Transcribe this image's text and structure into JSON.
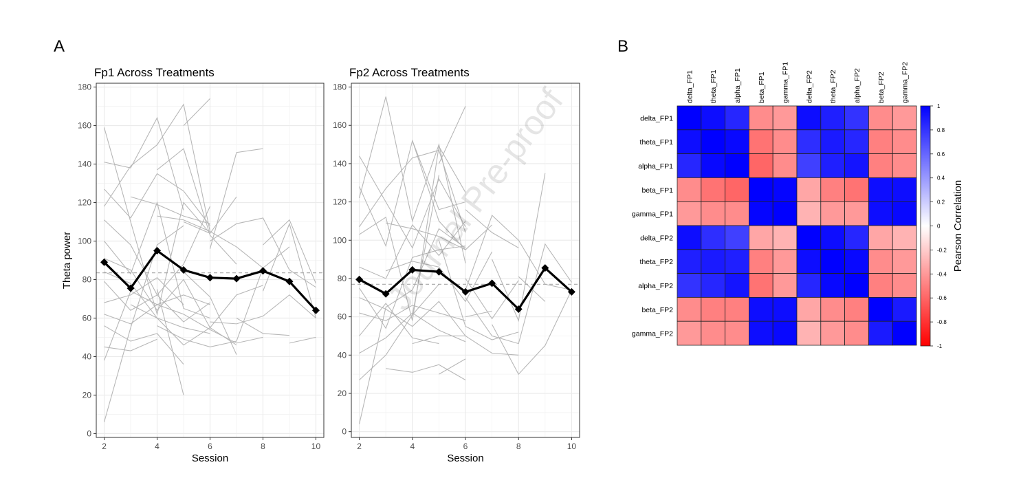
{
  "panel_labels": [
    "A",
    "B"
  ],
  "watermark": "Journal Pre-proof",
  "colors": {
    "individual_line": "#b3b3b3",
    "mean_line": "#000000",
    "reference_line": "#a6a6a6",
    "grid": "#ebebeb",
    "corr_negative": "#ff0000",
    "corr_zero": "#ffffff",
    "corr_positive": "#0000ff"
  },
  "chart_data": [
    {
      "type": "line",
      "title": "Fp1 Across Treatments",
      "xlabel": "Session",
      "ylabel": "Theta power",
      "xlim": [
        1.7,
        10.3
      ],
      "ylim": [
        -2,
        182
      ],
      "xticks": [
        2,
        4,
        6,
        8,
        10
      ],
      "yticks": [
        0,
        20,
        40,
        60,
        80,
        100,
        120,
        140,
        160,
        180
      ],
      "grid": true,
      "reference_y": 83.5,
      "mean_series": {
        "x": [
          2,
          3,
          4,
          5,
          6,
          7,
          8,
          9,
          10
        ],
        "y": [
          89,
          75.5,
          95,
          85,
          81,
          80.5,
          84.5,
          79,
          64
        ]
      },
      "individual_series": [
        {
          "x": [
            2,
            3,
            4,
            5,
            6
          ],
          "y": [
            159,
            110,
            62,
            120,
            104
          ]
        },
        {
          "x": [
            2,
            3,
            4,
            5
          ],
          "y": [
            141,
            138,
            164,
            116
          ]
        },
        {
          "x": [
            2,
            3,
            4,
            5,
            6
          ],
          "y": [
            127,
            112,
            135,
            126,
            108
          ]
        },
        {
          "x": [
            2,
            3,
            4,
            5,
            6
          ],
          "y": [
            118,
            139,
            150,
            171,
            105
          ]
        },
        {
          "x": [
            2,
            3,
            4,
            5,
            6
          ],
          "y": [
            111,
            98,
            72,
            88,
            118
          ]
        },
        {
          "x": [
            2,
            3,
            4,
            5,
            6
          ],
          "y": [
            100,
            83,
            120,
            65,
            60
          ]
        },
        {
          "x": [
            2,
            3,
            4,
            5,
            6,
            7,
            8
          ],
          "y": [
            91,
            85,
            64,
            80,
            55,
            72,
            77
          ]
        },
        {
          "x": [
            2,
            3,
            4,
            5,
            6
          ],
          "y": [
            84,
            78,
            60,
            55,
            52
          ]
        },
        {
          "x": [
            2,
            3,
            4,
            5,
            6
          ],
          "y": [
            79,
            64,
            72,
            58,
            68
          ]
        },
        {
          "x": [
            2,
            3,
            4,
            5
          ],
          "y": [
            68,
            72,
            81,
            67
          ]
        },
        {
          "x": [
            2,
            3,
            4,
            5,
            6,
            7,
            8
          ],
          "y": [
            62,
            57,
            67,
            62,
            54,
            47,
            50
          ]
        },
        {
          "x": [
            2,
            3,
            4,
            5
          ],
          "y": [
            56,
            48,
            52,
            36
          ]
        },
        {
          "x": [
            2,
            3,
            4
          ],
          "y": [
            45,
            43,
            49
          ]
        },
        {
          "x": [
            2,
            3,
            4,
            5,
            6
          ],
          "y": [
            38,
            74,
            67,
            72,
            67
          ]
        },
        {
          "x": [
            2,
            3,
            4,
            5
          ],
          "y": [
            6,
            55,
            98,
            108
          ]
        },
        {
          "x": [
            3,
            4,
            5,
            6
          ],
          "y": [
            123,
            119,
            113,
            109
          ]
        },
        {
          "x": [
            4,
            5,
            6,
            7
          ],
          "y": [
            137,
            148,
            103,
            88
          ]
        },
        {
          "x": [
            5,
            6
          ],
          "y": [
            160,
            174
          ]
        },
        {
          "x": [
            4,
            5,
            6,
            7,
            8
          ],
          "y": [
            113,
            111,
            105,
            97,
            86
          ]
        },
        {
          "x": [
            5,
            6,
            7
          ],
          "y": [
            110,
            104,
            123
          ]
        },
        {
          "x": [
            6,
            7,
            8
          ],
          "y": [
            96,
            146,
            148
          ]
        },
        {
          "x": [
            6,
            7,
            8,
            9,
            10
          ],
          "y": [
            100,
            109,
            112,
            85,
            76
          ]
        },
        {
          "x": [
            4,
            5
          ],
          "y": [
            75,
            20
          ]
        },
        {
          "x": [
            6,
            7,
            8,
            9,
            10
          ],
          "y": [
            58,
            57,
            61,
            72,
            60
          ]
        },
        {
          "x": [
            7,
            8,
            9
          ],
          "y": [
            60,
            52,
            51
          ]
        },
        {
          "x": [
            8,
            9,
            10
          ],
          "y": [
            98,
            111,
            78
          ]
        },
        {
          "x": [
            8,
            9,
            10
          ],
          "y": [
            74,
            109,
            60
          ]
        },
        {
          "x": [
            9,
            10
          ],
          "y": [
            47,
            50
          ]
        },
        {
          "x": [
            5,
            6,
            7
          ],
          "y": [
            84,
            71,
            41
          ]
        },
        {
          "x": [
            3,
            4,
            5,
            6,
            7
          ],
          "y": [
            67,
            60,
            46,
            55,
            46
          ]
        },
        {
          "x": [
            4,
            5,
            6,
            7,
            8,
            9
          ],
          "y": [
            56,
            49,
            45,
            48,
            86,
            97
          ]
        }
      ]
    },
    {
      "type": "line",
      "title": "Fp2 Across Treatments",
      "xlabel": "Session",
      "ylabel": "",
      "xlim": [
        1.7,
        10.3
      ],
      "ylim": [
        -3,
        182
      ],
      "xticks": [
        2,
        4,
        6,
        8,
        10
      ],
      "yticks": [
        0,
        20,
        40,
        60,
        80,
        100,
        120,
        140,
        160,
        180
      ],
      "grid": true,
      "reference_y": 77,
      "mean_series": {
        "x": [
          2,
          3,
          4,
          5,
          6,
          7,
          8,
          9,
          10
        ],
        "y": [
          79.5,
          72,
          84.5,
          83.5,
          73,
          77.5,
          64,
          85.5,
          73
        ]
      },
      "individual_series": [
        {
          "x": [
            2,
            3,
            4,
            5,
            6
          ],
          "y": [
            144,
            120,
            96,
            132,
            107
          ]
        },
        {
          "x": [
            2,
            3,
            4,
            5,
            6
          ],
          "y": [
            128,
            97,
            152,
            116,
            120
          ]
        },
        {
          "x": [
            2,
            3,
            4,
            5,
            6
          ],
          "y": [
            122,
            175,
            110,
            150,
            88
          ]
        },
        {
          "x": [
            2,
            3,
            4,
            5,
            6
          ],
          "y": [
            107,
            127,
            143,
            147,
            104
          ]
        },
        {
          "x": [
            2,
            3,
            4,
            5,
            6
          ],
          "y": [
            103,
            112,
            58,
            149,
            125
          ]
        },
        {
          "x": [
            2,
            3,
            4,
            5,
            6
          ],
          "y": [
            86,
            80,
            108,
            92,
            110
          ]
        },
        {
          "x": [
            2,
            3,
            4,
            5,
            6
          ],
          "y": [
            75,
            54,
            91,
            95,
            97
          ]
        },
        {
          "x": [
            2,
            3,
            4,
            5,
            6
          ],
          "y": [
            70,
            64,
            55,
            68,
            50
          ]
        },
        {
          "x": [
            2,
            3,
            4,
            5,
            6
          ],
          "y": [
            62,
            58,
            66,
            62,
            58
          ]
        },
        {
          "x": [
            2,
            3,
            4,
            5
          ],
          "y": [
            50,
            67,
            49,
            46
          ]
        },
        {
          "x": [
            2,
            3,
            4,
            5,
            6
          ],
          "y": [
            41,
            49,
            62,
            53,
            47
          ]
        },
        {
          "x": [
            2,
            3,
            4,
            5
          ],
          "y": [
            27,
            40,
            61,
            77
          ]
        },
        {
          "x": [
            2,
            3,
            4,
            5,
            6
          ],
          "y": [
            4,
            65,
            74,
            106,
            96
          ]
        },
        {
          "x": [
            3,
            4,
            5,
            6
          ],
          "y": [
            109,
            106,
            102,
            95
          ]
        },
        {
          "x": [
            4,
            5,
            6,
            7
          ],
          "y": [
            152,
            110,
            95,
            108
          ]
        },
        {
          "x": [
            5,
            6
          ],
          "y": [
            140,
            170
          ]
        },
        {
          "x": [
            4,
            5
          ],
          "y": [
            61,
            134
          ]
        },
        {
          "x": [
            5,
            6,
            7,
            8
          ],
          "y": [
            100,
            55,
            48,
            52
          ]
        },
        {
          "x": [
            6,
            7,
            8
          ],
          "y": [
            116,
            104,
            96
          ]
        },
        {
          "x": [
            6,
            7,
            8
          ],
          "y": [
            80,
            59,
            79
          ]
        },
        {
          "x": [
            6,
            7,
            8,
            9,
            10
          ],
          "y": [
            74,
            113,
            100,
            77,
            74
          ]
        },
        {
          "x": [
            6,
            7,
            8,
            9,
            10
          ],
          "y": [
            70,
            50,
            46,
            98,
            78
          ]
        },
        {
          "x": [
            6,
            7
          ],
          "y": [
            60,
            63
          ]
        },
        {
          "x": [
            7,
            8,
            9,
            10
          ],
          "y": [
            56,
            30,
            45,
            74
          ]
        },
        {
          "x": [
            7,
            8,
            9
          ],
          "y": [
            90,
            58,
            135
          ]
        },
        {
          "x": [
            8,
            9
          ],
          "y": [
            81,
            68
          ]
        },
        {
          "x": [
            5,
            6
          ],
          "y": [
            30,
            38
          ]
        },
        {
          "x": [
            3,
            4,
            5,
            6
          ],
          "y": [
            33,
            31,
            35,
            27
          ]
        },
        {
          "x": [
            4,
            5,
            6,
            7,
            8
          ],
          "y": [
            46,
            50,
            50,
            41,
            40
          ]
        },
        {
          "x": [
            3,
            4,
            5,
            6,
            7
          ],
          "y": [
            84,
            89,
            86,
            68,
            94
          ]
        }
      ]
    },
    {
      "type": "heatmap",
      "title": "",
      "legend_title": "Pearson Correlation",
      "labels": [
        "delta_FP1",
        "theta_FP1",
        "alpha_FP1",
        "beta_FP1",
        "gamma_FP1",
        "delta_FP2",
        "theta_FP2",
        "alpha_FP2",
        "beta_FP2",
        "gamma_FP2"
      ],
      "colorbar_range": [
        -1,
        1
      ],
      "colorbar_ticks": [
        "1",
        "0.8",
        "0.6",
        "0.4",
        "0.2",
        "0",
        "-0.2",
        "-0.4",
        "-0.6",
        "-0.8",
        "-1"
      ],
      "matrix": [
        [
          1.0,
          0.95,
          0.85,
          -0.45,
          -0.4,
          0.95,
          0.88,
          0.8,
          -0.45,
          -0.4
        ],
        [
          0.95,
          1.0,
          0.97,
          -0.55,
          -0.45,
          0.82,
          0.9,
          0.85,
          -0.5,
          -0.45
        ],
        [
          0.85,
          0.97,
          1.0,
          -0.6,
          -0.45,
          0.75,
          0.88,
          0.92,
          -0.5,
          -0.45
        ],
        [
          -0.45,
          -0.55,
          -0.6,
          1.0,
          0.98,
          -0.35,
          -0.5,
          -0.55,
          0.95,
          0.95
        ],
        [
          -0.4,
          -0.45,
          -0.45,
          0.98,
          1.0,
          -0.3,
          -0.4,
          -0.4,
          0.95,
          0.97
        ],
        [
          0.95,
          0.82,
          0.75,
          -0.35,
          -0.3,
          1.0,
          0.95,
          0.85,
          -0.35,
          -0.3
        ],
        [
          0.88,
          0.9,
          0.88,
          -0.5,
          -0.4,
          0.95,
          1.0,
          0.97,
          -0.45,
          -0.4
        ],
        [
          0.8,
          0.85,
          0.92,
          -0.55,
          -0.4,
          0.85,
          0.97,
          1.0,
          -0.5,
          -0.45
        ],
        [
          -0.45,
          -0.5,
          -0.5,
          0.95,
          0.95,
          -0.35,
          -0.45,
          -0.5,
          1.0,
          0.9
        ],
        [
          -0.4,
          -0.45,
          -0.45,
          0.95,
          0.97,
          -0.3,
          -0.4,
          -0.45,
          0.9,
          1.0
        ]
      ]
    }
  ]
}
